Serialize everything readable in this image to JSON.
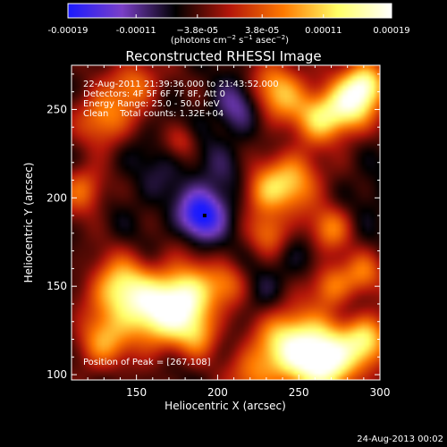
{
  "chart_data": {
    "type": "heatmap",
    "title": "Reconstructed RHESSI Image",
    "xlabel": "Heliocentric X (arcsec)",
    "ylabel": "Heliocentric Y (arcsec)",
    "xlim": [
      110,
      300
    ],
    "ylim": [
      97,
      275
    ],
    "xticks": [
      150,
      200,
      250,
      300
    ],
    "yticks": [
      100,
      150,
      200,
      250
    ],
    "colorbar": {
      "min": -0.00019,
      "max": 0.00019,
      "tick_values": [
        -0.00019,
        -0.00011,
        -3.8e-05,
        3.8e-05,
        0.00011,
        0.00019
      ],
      "tick_labels": [
        "-0.00019",
        "-0.00011",
        "−3.8e-05",
        "3.8e-05",
        "0.00011",
        "0.00019"
      ],
      "units_parts": [
        "(photons cm",
        "−2",
        " s",
        "−1",
        " asec",
        "−2",
        ")"
      ],
      "colors": [
        "#1a1aff",
        "#7a3fc8",
        "#000000",
        "#b4160a",
        "#ff7a00",
        "#ffff66",
        "#ffffff"
      ]
    },
    "annotations": [
      "22-Aug-2011 21:39:36.000 to 21:43:52.000",
      "Detectors: 4F 5F 6F 7F 8F, Att 0",
      "Energy Range: 25.0 - 50.0 keV",
      "Clean    Total counts: 1.32E+04"
    ],
    "peak_label": "Position of Peak = [267,108]",
    "peak_position": [
      267,
      108
    ],
    "min_marker": [
      192,
      190
    ],
    "features": [
      {
        "x": 190,
        "y": 190,
        "value": -0.00018,
        "r": 9
      },
      {
        "x": 205,
        "y": 200,
        "value": -8e-05,
        "r": 16
      },
      {
        "x": 165,
        "y": 218,
        "value": -7e-05,
        "r": 20
      },
      {
        "x": 205,
        "y": 218,
        "value": -5e-05,
        "r": 22
      },
      {
        "x": 120,
        "y": 225,
        "value": -6e-05,
        "r": 14
      },
      {
        "x": 145,
        "y": 180,
        "value": -5e-05,
        "r": 16
      },
      {
        "x": 212,
        "y": 252,
        "value": -0.00012,
        "r": 10
      },
      {
        "x": 198,
        "y": 240,
        "value": -5e-05,
        "r": 14
      },
      {
        "x": 172,
        "y": 248,
        "value": -4e-05,
        "r": 14
      },
      {
        "x": 125,
        "y": 120,
        "value": -6e-05,
        "r": 14
      },
      {
        "x": 225,
        "y": 145,
        "value": -7e-05,
        "r": 12
      },
      {
        "x": 240,
        "y": 165,
        "value": -7e-05,
        "r": 14
      },
      {
        "x": 275,
        "y": 140,
        "value": -6e-05,
        "r": 12
      },
      {
        "x": 295,
        "y": 200,
        "value": -7e-05,
        "r": 12
      },
      {
        "x": 285,
        "y": 175,
        "value": -5e-05,
        "r": 12
      },
      {
        "x": 262,
        "y": 222,
        "value": -5e-05,
        "r": 12
      },
      {
        "x": 150,
        "y": 105,
        "value": -5e-05,
        "r": 14
      },
      {
        "x": 196,
        "y": 205,
        "value": -5e-05,
        "r": 12
      },
      {
        "x": 267,
        "y": 108,
        "value": 0.00019,
        "r": 13
      },
      {
        "x": 245,
        "y": 118,
        "value": 0.00014,
        "r": 14
      },
      {
        "x": 180,
        "y": 143,
        "value": 0.00016,
        "r": 13
      },
      {
        "x": 160,
        "y": 133,
        "value": 0.00011,
        "r": 14
      },
      {
        "x": 140,
        "y": 148,
        "value": 0.00012,
        "r": 13
      },
      {
        "x": 128,
        "y": 118,
        "value": 8e-05,
        "r": 11
      },
      {
        "x": 280,
        "y": 252,
        "value": 0.00014,
        "r": 11
      },
      {
        "x": 292,
        "y": 265,
        "value": 0.00012,
        "r": 9
      },
      {
        "x": 238,
        "y": 260,
        "value": 9e-05,
        "r": 12
      },
      {
        "x": 262,
        "y": 245,
        "value": 8e-05,
        "r": 10
      },
      {
        "x": 247,
        "y": 210,
        "value": 9e-05,
        "r": 12
      },
      {
        "x": 227,
        "y": 203,
        "value": 7e-05,
        "r": 10
      },
      {
        "x": 232,
        "y": 180,
        "value": 6e-05,
        "r": 9
      },
      {
        "x": 270,
        "y": 183,
        "value": 6e-05,
        "r": 9
      },
      {
        "x": 292,
        "y": 120,
        "value": 0.00011,
        "r": 10
      },
      {
        "x": 290,
        "y": 158,
        "value": 5e-05,
        "r": 9
      },
      {
        "x": 130,
        "y": 245,
        "value": 8e-05,
        "r": 12
      },
      {
        "x": 117,
        "y": 205,
        "value": 6e-05,
        "r": 10
      },
      {
        "x": 150,
        "y": 265,
        "value": 5e-05,
        "r": 10
      },
      {
        "x": 270,
        "y": 150,
        "value": 7e-05,
        "r": 9
      },
      {
        "x": 207,
        "y": 152,
        "value": 4e-05,
        "r": 9
      },
      {
        "x": 188,
        "y": 122,
        "value": 4e-05,
        "r": 9
      },
      {
        "x": 222,
        "y": 100,
        "value": 5e-05,
        "r": 11
      },
      {
        "x": 178,
        "y": 232,
        "value": 2e-05,
        "r": 7
      }
    ]
  },
  "footer": {
    "timestamp": "24-Aug-2013 00:02"
  }
}
